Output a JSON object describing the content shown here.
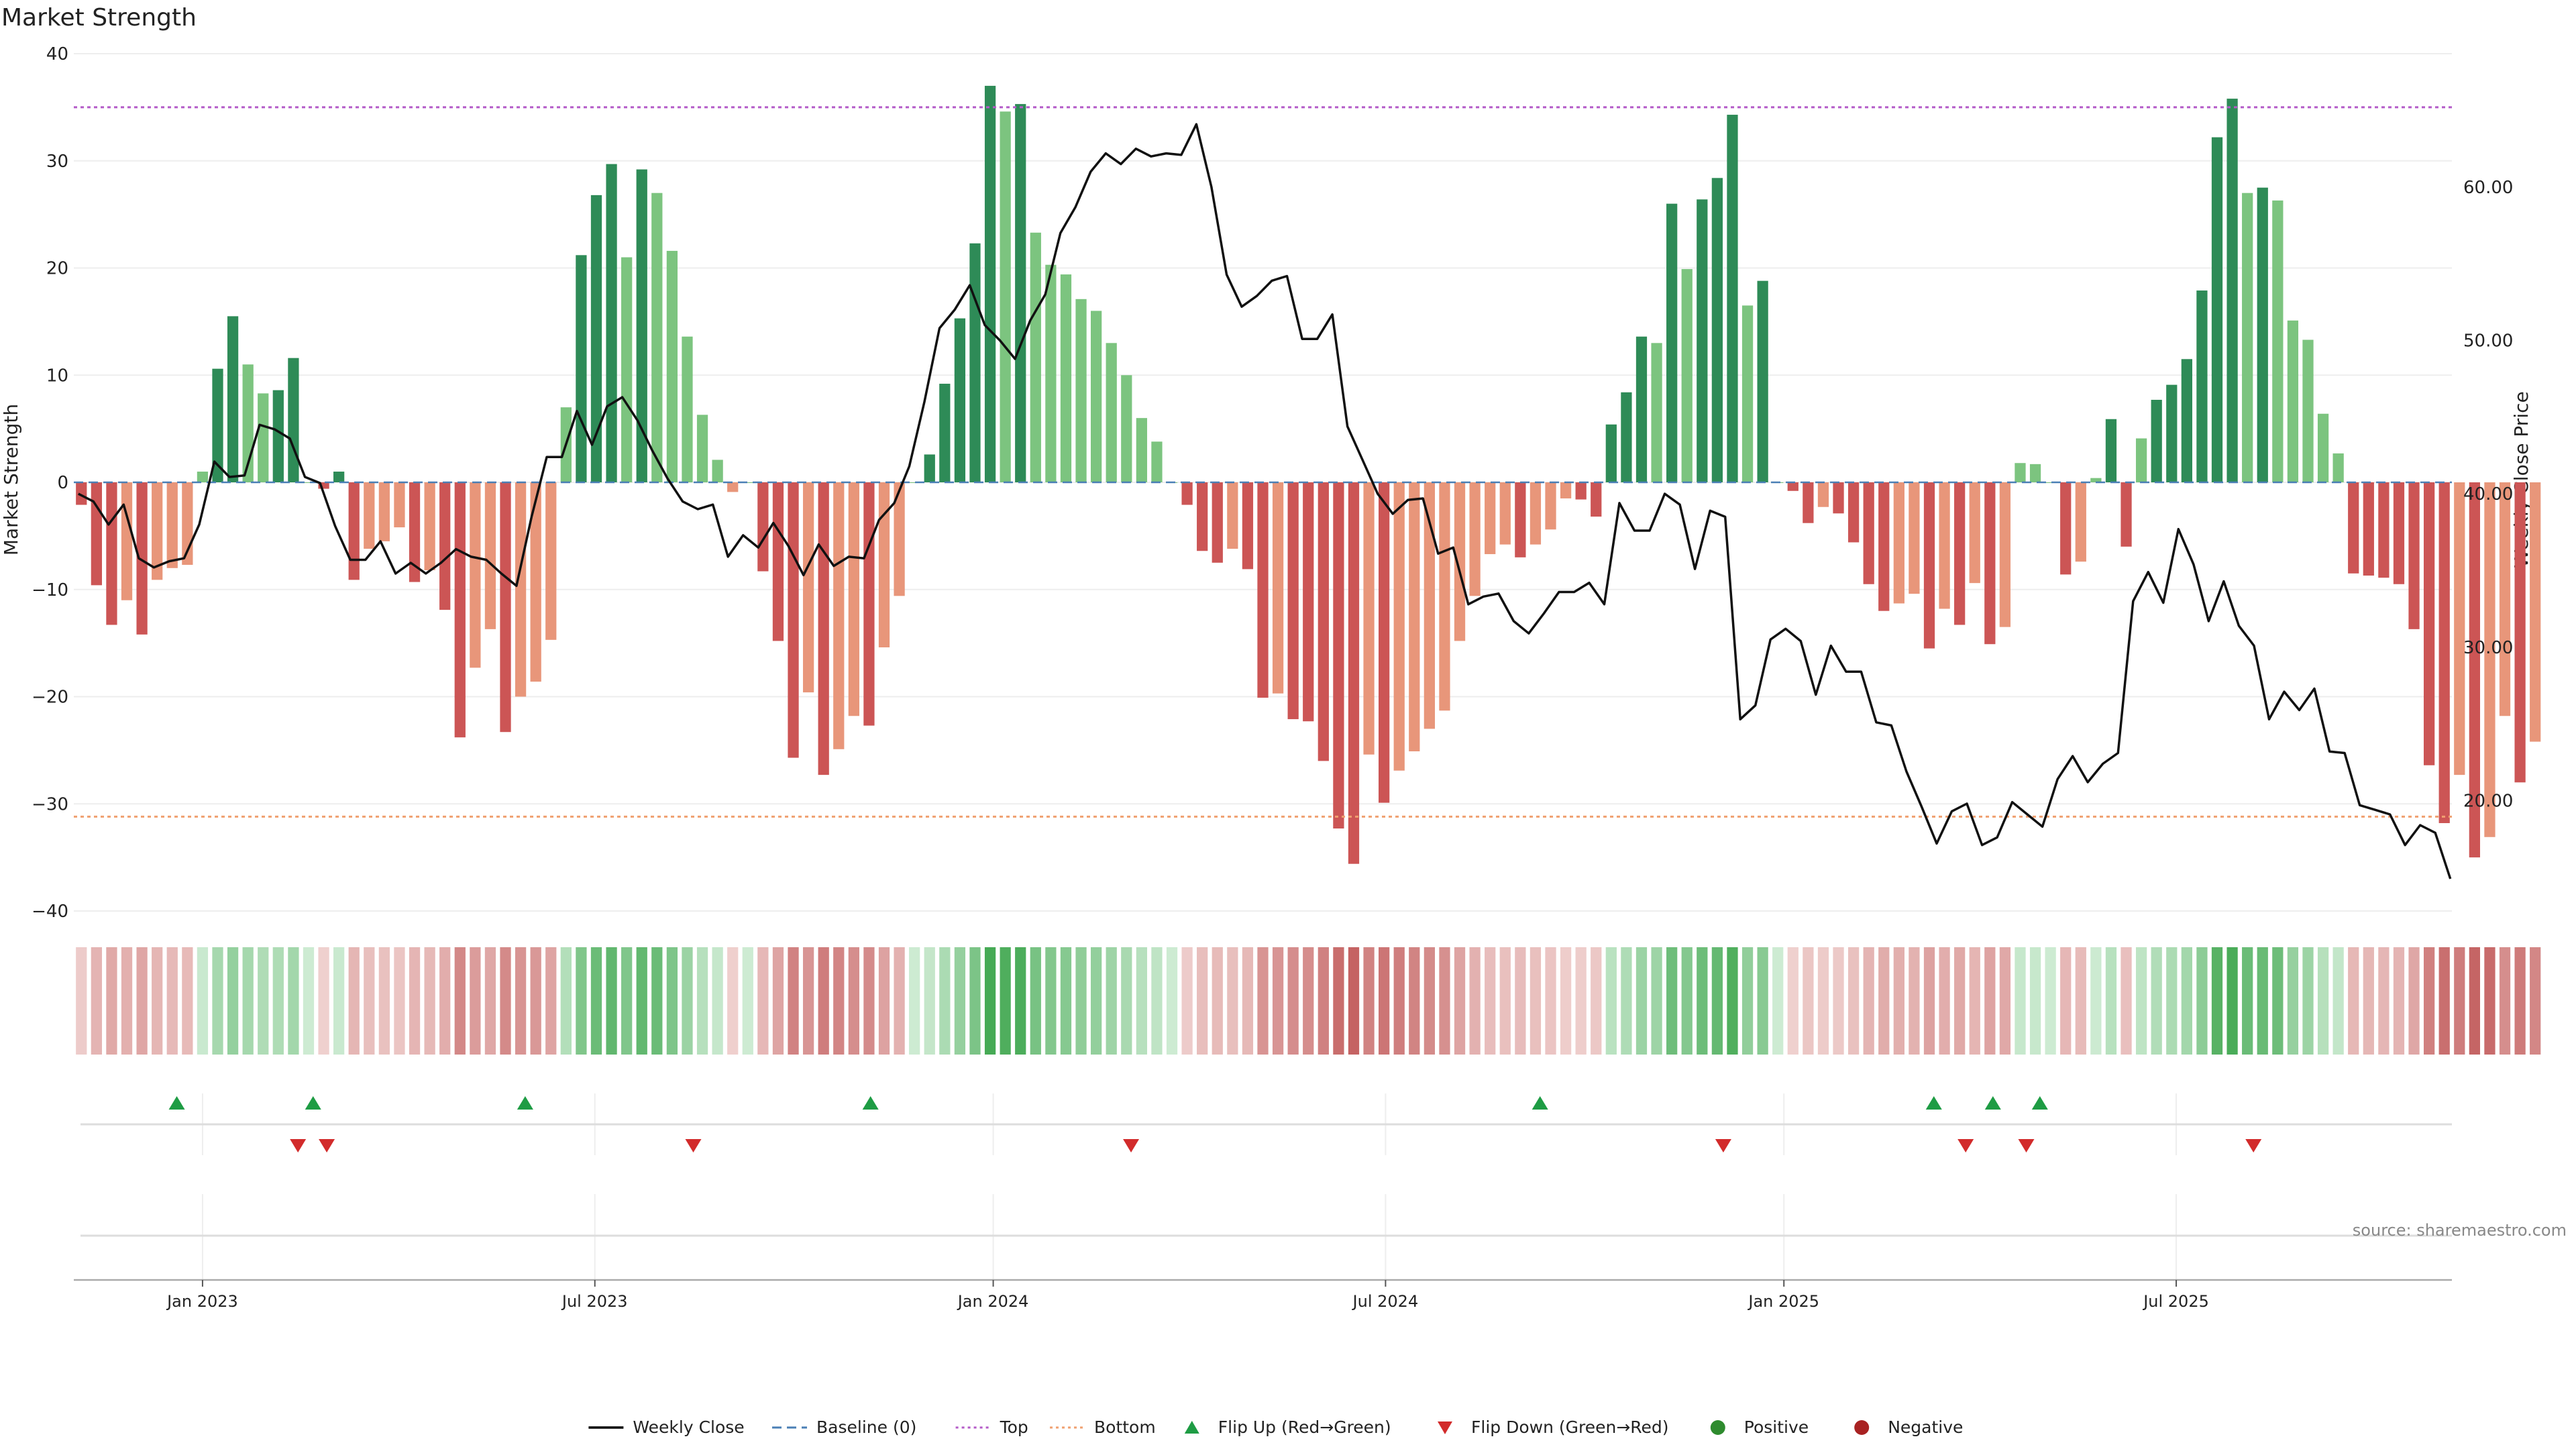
{
  "chart_data": {
    "type": "bar",
    "title": "Market Strength",
    "ylabel_left": "Market Strength",
    "ylabel_right": "Weekly Close Price",
    "left_ylim": [
      -40,
      40
    ],
    "left_yticks": [
      40,
      30,
      20,
      10,
      0,
      -10,
      -20,
      -30,
      -40
    ],
    "left_ytick_labels": [
      "40",
      "30",
      "20",
      "10",
      "0",
      "−10",
      "−20",
      "−30",
      "−40"
    ],
    "right_ylim": [
      12.8,
      68.7
    ],
    "right_yticks": [
      60,
      50,
      40,
      30,
      20
    ],
    "right_ytick_labels": [
      "60.00",
      "50.00",
      "40.00",
      "30.00",
      "20.00"
    ],
    "x_range": [
      0,
      157
    ],
    "x_ticks": [
      {
        "label": "Jan 2023",
        "x": 8.5
      },
      {
        "label": "Jul 2023",
        "x": 34.4
      },
      {
        "label": "Jan 2024",
        "x": 60.7
      },
      {
        "label": "Jul 2024",
        "x": 86.6
      },
      {
        "label": "Jan 2025",
        "x": 112.9
      },
      {
        "label": "Jul 2025",
        "x": 138.8
      }
    ],
    "grid": true,
    "top_level": 35,
    "bottom_level": -31.2,
    "strength": [
      -2.1,
      -9.6,
      -13.3,
      -11,
      -14.2,
      -9.1,
      -8,
      -7.7,
      1,
      10.6,
      15.5,
      11,
      8.3,
      8.6,
      11.6,
      0,
      -0.6,
      1,
      -9.1,
      -6.2,
      -5.5,
      -4.2,
      -9.3,
      -8.2,
      -11.9,
      -23.8,
      -17.3,
      -13.7,
      -23.3,
      -20,
      -18.6,
      -14.7,
      7,
      21.2,
      26.8,
      29.7,
      21,
      29.2,
      27,
      21.6,
      13.6,
      6.3,
      2.1,
      -0.9,
      0,
      -8.3,
      -14.8,
      -25.7,
      -19.6,
      -27.3,
      -24.9,
      -21.8,
      -22.7,
      -15.4,
      -10.6,
      0,
      2.6,
      9.2,
      15.3,
      22.3,
      37,
      34.6,
      35.3,
      23.3,
      20.3,
      19.4,
      17.1,
      16,
      13,
      10,
      6,
      3.8,
      0,
      -2.1,
      -6.4,
      -7.5,
      -6.2,
      -8.1,
      -20.1,
      -19.7,
      -22.1,
      -22.3,
      -26,
      -32.3,
      -35.6,
      -25.4,
      -29.9,
      -26.9,
      -25.1,
      -23,
      -21.3,
      -14.8,
      -10.6,
      -6.7,
      -5.8,
      -7,
      -5.8,
      -4.4,
      -1.5,
      -1.6,
      -3.2,
      5.4,
      8.4,
      13.6,
      13,
      26,
      19.9,
      26.4,
      28.4,
      34.3,
      16.5,
      18.8,
      0,
      -0.8,
      -3.8,
      -2.3,
      -2.9,
      -5.6,
      -9.5,
      -12,
      -11.3,
      -10.4,
      -15.5,
      -11.8,
      -13.3,
      -9.4,
      -15.1,
      -13.5,
      1.8,
      1.7,
      0,
      -8.6,
      -7.4,
      0.4,
      5.9,
      -6,
      4.1,
      7.7,
      9.1,
      11.5,
      17.9,
      32.2,
      35.8,
      27,
      27.5,
      26.3,
      15.1,
      13.3,
      6.4,
      2.7,
      -8.5,
      -8.7,
      -8.9,
      -9.5,
      -13.7,
      -26.4,
      -31.8,
      -27.3,
      -35,
      -33.1,
      -21.8,
      -28,
      -24.2
    ],
    "weekly_close": [
      40,
      39.5,
      38,
      39.3,
      35.8,
      35.2,
      35.6,
      35.8,
      38,
      42.1,
      41.1,
      41.2,
      44.5,
      44.2,
      43.6,
      41.1,
      40.7,
      37.9,
      35.7,
      35.7,
      36.9,
      34.8,
      35.5,
      34.8,
      35.5,
      36.4,
      35.9,
      35.7,
      34.8,
      34,
      38.5,
      42.4,
      42.4,
      45.4,
      43.2,
      45.7,
      46.3,
      44.8,
      42.8,
      41,
      39.5,
      39,
      39.3,
      35.9,
      37.3,
      36.5,
      38.1,
      36.6,
      34.7,
      36.7,
      35.3,
      35.9,
      35.8,
      38.3,
      39.4,
      41.8,
      46,
      50.8,
      52,
      53.6,
      51,
      50,
      48.8,
      51.3,
      53,
      57,
      58.7,
      61,
      62.2,
      61.5,
      62.5,
      62,
      62.2,
      62.1,
      64.1,
      60,
      54.3,
      52.2,
      52.9,
      53.9,
      54.2,
      50.1,
      50.1,
      51.7,
      44.4,
      42.2,
      40,
      38.7,
      39.6,
      39.7,
      36.1,
      36.5,
      32.8,
      33.3,
      33.5,
      31.7,
      30.9,
      32.2,
      33.6,
      33.6,
      34.2,
      32.8,
      39.4,
      37.6,
      37.6,
      40,
      39.3,
      35.1,
      38.9,
      38.5,
      25.3,
      26.2,
      30.5,
      31.2,
      30.4,
      26.9,
      30.1,
      28.4,
      28.4,
      25.1,
      24.9,
      21.9,
      19.6,
      17.2,
      19.3,
      19.8,
      17.1,
      17.6,
      19.9,
      19.1,
      18.3,
      21.4,
      22.9,
      21.2,
      22.4,
      23.1,
      33,
      34.9,
      32.9,
      37.7,
      35.4,
      31.7,
      34.3,
      31.4,
      30.1,
      25.3,
      27.1,
      25.9,
      27.3,
      23.2,
      23.1,
      19.7,
      19.4,
      19.1,
      17.1,
      18.4,
      17.9,
      14.9
    ],
    "flip_up_x": [
      6.8,
      15.8,
      29.8,
      52.6,
      96.8,
      122.8,
      126.7,
      129.8
    ],
    "flip_down_x": [
      14.8,
      16.7,
      40.9,
      69.8,
      108.9,
      124.9,
      128.9,
      143.9
    ],
    "legend": [
      {
        "label": "Weekly Close",
        "kind": "line-solid",
        "color": "#000000"
      },
      {
        "label": "Baseline (0)",
        "kind": "line-dashed",
        "color": "#4a7fb5"
      },
      {
        "label": "Top",
        "kind": "line-dotted",
        "color": "#b45bc8"
      },
      {
        "label": "Bottom",
        "kind": "line-dotted",
        "color": "#f0a070"
      },
      {
        "label": "Flip Up (Red→Green)",
        "kind": "tri-up",
        "color": "#1e9c44"
      },
      {
        "label": "Flip Down (Green→Red)",
        "kind": "tri-down",
        "color": "#d22b2b"
      },
      {
        "label": "Positive",
        "kind": "dot",
        "color": "#2e8b2e"
      },
      {
        "label": "Negative",
        "kind": "dot",
        "color": "#a82222"
      }
    ],
    "source": "source: sharemaestro.com"
  },
  "colors": {
    "pos_strong": "#2e8b57",
    "pos_light": "#7cc47f",
    "neg_strong": "#cc5555",
    "neg_light": "#e8967a",
    "close_line": "#111111",
    "top_line": "#b45bc8",
    "bottom_line": "#f0a070",
    "baseline": "#4a7fb5",
    "grid": "#eeeeee",
    "up_marker": "#1e9c44",
    "down_marker": "#d22b2b",
    "text": "#222222"
  }
}
